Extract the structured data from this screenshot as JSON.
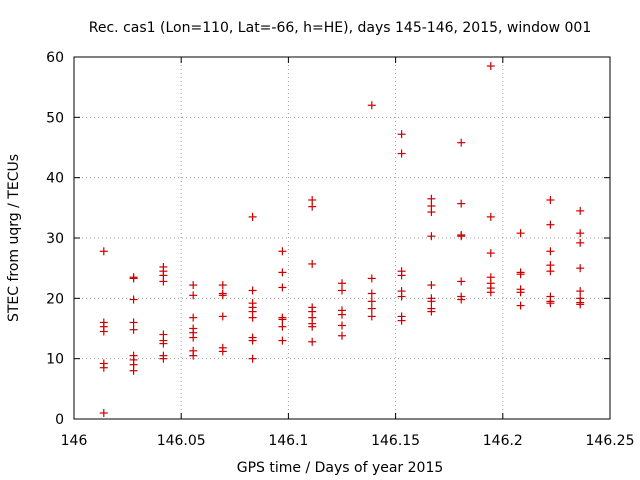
{
  "chart_data": {
    "type": "scatter",
    "title": "Rec. cas1 (Lon=110, Lat=-66, h=HE), days 145-146, 2015, window 001",
    "xlabel": "GPS time / Days of year 2015",
    "ylabel": "STEC from uqrg / TECUs",
    "xlim": [
      146,
      146.25
    ],
    "ylim": [
      0,
      60
    ],
    "xticks": [
      146,
      146.05,
      146.1,
      146.15,
      146.2,
      146.25
    ],
    "xtick_labels": [
      "146",
      "146.05",
      "146.1",
      "146.15",
      "146.2",
      "146.25"
    ],
    "yticks": [
      0,
      10,
      20,
      30,
      40,
      50,
      60
    ],
    "ytick_labels": [
      "0",
      "10",
      "20",
      "30",
      "40",
      "50",
      "60"
    ],
    "grid": true,
    "marker": "+",
    "marker_color": "#cc0000",
    "series": [
      {
        "name": "STEC",
        "points": [
          [
            146.0139,
            1.0
          ],
          [
            146.0139,
            8.5
          ],
          [
            146.0139,
            9.2
          ],
          [
            146.0139,
            14.5
          ],
          [
            146.0139,
            15.3
          ],
          [
            146.0139,
            16.0
          ],
          [
            146.0139,
            27.8
          ],
          [
            146.0278,
            8.0
          ],
          [
            146.0278,
            9.0
          ],
          [
            146.0278,
            9.8
          ],
          [
            146.0278,
            10.5
          ],
          [
            146.0278,
            14.8
          ],
          [
            146.0278,
            16.0
          ],
          [
            146.0278,
            19.8
          ],
          [
            146.0278,
            23.3
          ],
          [
            146.0278,
            23.5
          ],
          [
            146.0417,
            10.0
          ],
          [
            146.0417,
            10.5
          ],
          [
            146.0417,
            12.5
          ],
          [
            146.0417,
            13.0
          ],
          [
            146.0417,
            14.0
          ],
          [
            146.0417,
            22.8
          ],
          [
            146.0417,
            23.8
          ],
          [
            146.0417,
            24.5
          ],
          [
            146.0417,
            25.2
          ],
          [
            146.0556,
            10.5
          ],
          [
            146.0556,
            11.3
          ],
          [
            146.0556,
            13.5
          ],
          [
            146.0556,
            14.3
          ],
          [
            146.0556,
            15.0
          ],
          [
            146.0556,
            16.8
          ],
          [
            146.0556,
            20.5
          ],
          [
            146.0556,
            22.2
          ],
          [
            146.0694,
            11.2
          ],
          [
            146.0694,
            11.8
          ],
          [
            146.0694,
            17.0
          ],
          [
            146.0694,
            20.5
          ],
          [
            146.0694,
            20.8
          ],
          [
            146.0694,
            22.2
          ],
          [
            146.0833,
            10.0
          ],
          [
            146.0833,
            13.0
          ],
          [
            146.0833,
            13.5
          ],
          [
            146.0833,
            16.8
          ],
          [
            146.0833,
            17.8
          ],
          [
            146.0833,
            18.5
          ],
          [
            146.0833,
            19.2
          ],
          [
            146.0833,
            21.3
          ],
          [
            146.0833,
            33.5
          ],
          [
            146.0972,
            13.0
          ],
          [
            146.0972,
            15.3
          ],
          [
            146.0972,
            16.5
          ],
          [
            146.0972,
            16.8
          ],
          [
            146.0972,
            21.8
          ],
          [
            146.0972,
            24.3
          ],
          [
            146.0972,
            27.8
          ],
          [
            146.1111,
            12.8
          ],
          [
            146.1111,
            15.3
          ],
          [
            146.1111,
            15.8
          ],
          [
            146.1111,
            16.8
          ],
          [
            146.1111,
            17.8
          ],
          [
            146.1111,
            18.5
          ],
          [
            146.1111,
            25.7
          ],
          [
            146.1111,
            35.2
          ],
          [
            146.1111,
            36.3
          ],
          [
            146.125,
            13.8
          ],
          [
            146.125,
            15.5
          ],
          [
            146.125,
            17.3
          ],
          [
            146.125,
            18.0
          ],
          [
            146.125,
            21.3
          ],
          [
            146.125,
            22.5
          ],
          [
            146.1389,
            17.0
          ],
          [
            146.1389,
            18.3
          ],
          [
            146.1389,
            19.5
          ],
          [
            146.1389,
            20.8
          ],
          [
            146.1389,
            23.3
          ],
          [
            146.1389,
            52.0
          ],
          [
            146.1528,
            16.3
          ],
          [
            146.1528,
            17.0
          ],
          [
            146.1528,
            20.3
          ],
          [
            146.1528,
            21.2
          ],
          [
            146.1528,
            23.8
          ],
          [
            146.1528,
            24.5
          ],
          [
            146.1528,
            44.0
          ],
          [
            146.1528,
            47.2
          ],
          [
            146.1667,
            17.8
          ],
          [
            146.1667,
            18.3
          ],
          [
            146.1667,
            19.5
          ],
          [
            146.1667,
            20.0
          ],
          [
            146.1667,
            22.2
          ],
          [
            146.1667,
            30.3
          ],
          [
            146.1667,
            34.3
          ],
          [
            146.1667,
            35.3
          ],
          [
            146.1667,
            36.5
          ],
          [
            146.1806,
            19.8
          ],
          [
            146.1806,
            20.3
          ],
          [
            146.1806,
            22.8
          ],
          [
            146.1806,
            30.3
          ],
          [
            146.1806,
            30.5
          ],
          [
            146.1806,
            35.7
          ],
          [
            146.1806,
            45.8
          ],
          [
            146.1944,
            21.0
          ],
          [
            146.1944,
            21.7
          ],
          [
            146.1944,
            22.5
          ],
          [
            146.1944,
            23.5
          ],
          [
            146.1944,
            27.5
          ],
          [
            146.1944,
            33.5
          ],
          [
            146.1944,
            58.5
          ],
          [
            146.2083,
            18.8
          ],
          [
            146.2083,
            21.0
          ],
          [
            146.2083,
            21.5
          ],
          [
            146.2083,
            24.0
          ],
          [
            146.2083,
            24.3
          ],
          [
            146.2083,
            30.8
          ],
          [
            146.2222,
            19.2
          ],
          [
            146.2222,
            19.5
          ],
          [
            146.2222,
            20.3
          ],
          [
            146.2222,
            24.5
          ],
          [
            146.2222,
            25.5
          ],
          [
            146.2222,
            27.8
          ],
          [
            146.2222,
            32.2
          ],
          [
            146.2222,
            36.3
          ],
          [
            146.2361,
            19.0
          ],
          [
            146.2361,
            19.3
          ],
          [
            146.2361,
            20.0
          ],
          [
            146.2361,
            21.2
          ],
          [
            146.2361,
            25.0
          ],
          [
            146.2361,
            29.2
          ],
          [
            146.2361,
            30.8
          ],
          [
            146.2361,
            34.5
          ]
        ]
      }
    ]
  }
}
